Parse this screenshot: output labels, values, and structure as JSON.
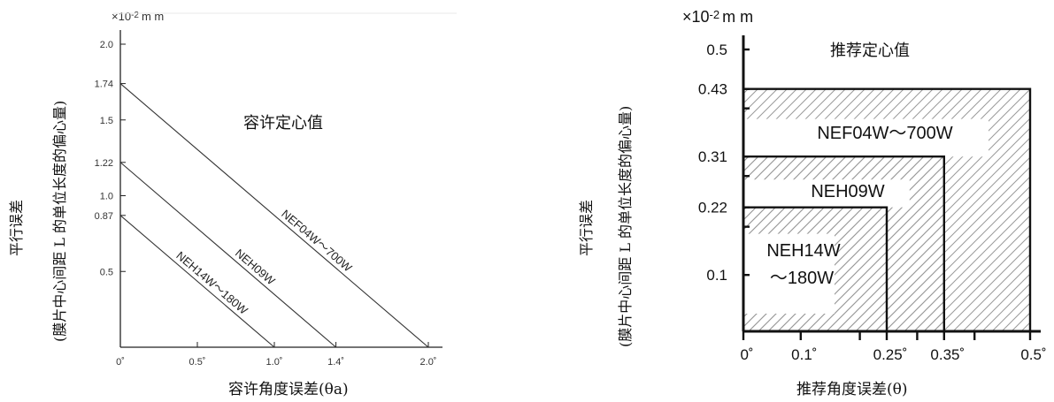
{
  "chart_data": [
    {
      "type": "line",
      "title": "容许定心值",
      "unit_label": {
        "prefix": "×10",
        "exponent": "-2",
        "unit": "m m"
      },
      "ylabel": [
        "平行误差",
        "(膜片中心间距 L 的单位长度的偏心量)"
      ],
      "xlabel": "容许角度误差(θa)",
      "x_ticks": [
        "0˚",
        "0.5˚",
        "1.0˚",
        "1.4˚",
        "2.0˚"
      ],
      "x_tick_values": [
        0,
        0.5,
        1.0,
        1.4,
        2.0
      ],
      "y_ticks": [
        "2.0",
        "1.74",
        "1.5",
        "1.22",
        "1.0",
        "0.87",
        "0.5"
      ],
      "y_tick_values": [
        2.0,
        1.74,
        1.5,
        1.22,
        1.0,
        0.87,
        0.5
      ],
      "xlim": [
        0,
        2.0
      ],
      "ylim": [
        0,
        2.0
      ],
      "series": [
        {
          "name": "NEF04W～700W",
          "x": [
            0,
            2.0
          ],
          "y": [
            1.74,
            0
          ]
        },
        {
          "name": "NEH09W",
          "x": [
            0,
            1.4
          ],
          "y": [
            1.22,
            0
          ]
        },
        {
          "name": "NEH14W～180W",
          "x": [
            0,
            1.0
          ],
          "y": [
            0.87,
            0
          ]
        }
      ]
    },
    {
      "type": "area",
      "title": "推荐定心值",
      "unit_label": {
        "prefix": "×10",
        "exponent": "-2",
        "unit": "m m"
      },
      "ylabel": [
        "平行误差",
        "(膜片中心间距 L 的单位长度的偏心量)"
      ],
      "xlabel": "推荐角度误差(θ)",
      "x_ticks": [
        "0˚",
        "0.1˚",
        "0.25˚",
        "0.35˚",
        "0.5˚"
      ],
      "x_tick_values": [
        0,
        0.1,
        0.25,
        0.35,
        0.5
      ],
      "y_ticks": [
        "0.5",
        "0.43",
        "0.31",
        "0.22",
        "0.1"
      ],
      "y_tick_values": [
        0.5,
        0.43,
        0.31,
        0.22,
        0.1
      ],
      "xlim": [
        0,
        0.5
      ],
      "ylim": [
        0,
        0.5
      ],
      "series": [
        {
          "name": "NEF04W～700W",
          "x_max": 0.5,
          "y_max": 0.43
        },
        {
          "name": "NEH09W",
          "x_max": 0.35,
          "y_max": 0.31
        },
        {
          "name": "NEH14W～180W",
          "x_max": 0.25,
          "y_max": 0.22
        }
      ],
      "region_labels": [
        "NEF04W～700W",
        "NEH09W",
        "NEH14W",
        "～180W"
      ]
    }
  ]
}
